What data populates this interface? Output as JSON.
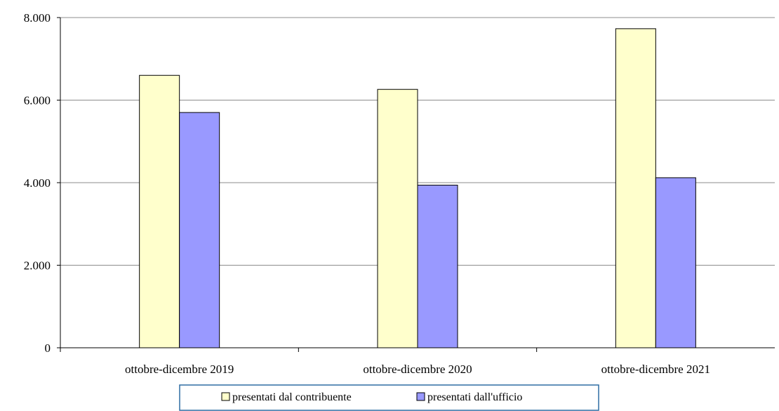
{
  "chart_data": {
    "type": "bar",
    "categories": [
      "ottobre-dicembre 2019",
      "ottobre-dicembre 2020",
      "ottobre-dicembre 2021"
    ],
    "series": [
      {
        "name": "presentati dal contribuente",
        "values": [
          6600,
          6260,
          7730
        ],
        "color": "#ffffcc"
      },
      {
        "name": "presentati dall'ufficio",
        "values": [
          5700,
          3940,
          4120
        ],
        "color": "#9999ff"
      }
    ],
    "y_ticks": [
      "0",
      "2.000",
      "4.000",
      "6.000",
      "8.000"
    ],
    "ylim": [
      0,
      8000
    ],
    "grid": true,
    "legend": "bottom-center",
    "title": "",
    "xlabel": "",
    "ylabel": ""
  }
}
